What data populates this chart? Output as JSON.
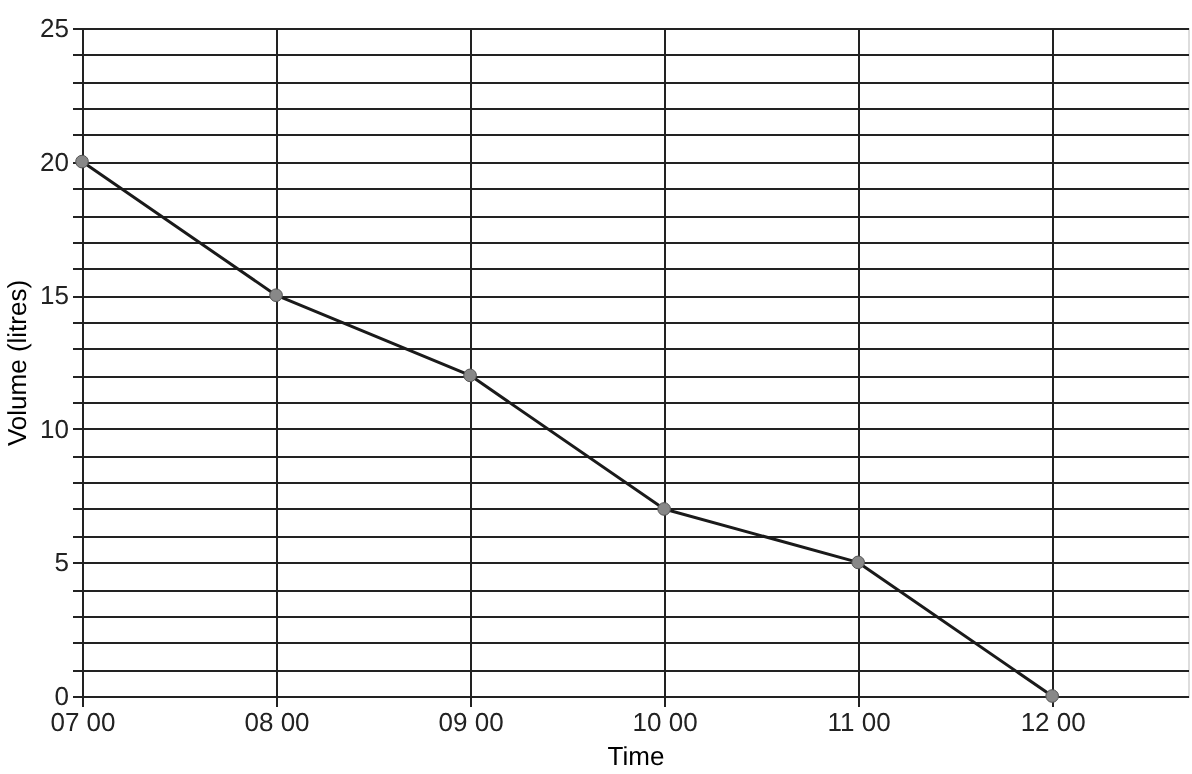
{
  "chart_data": {
    "type": "line",
    "xlabel": "Time",
    "ylabel": "Volume (litres)",
    "categories": [
      "07 00",
      "08 00",
      "09 00",
      "10 00",
      "11 00",
      "12 00"
    ],
    "series": [
      {
        "color": "#1a1a1a",
        "values": [
          20,
          15,
          12,
          7,
          5,
          0
        ]
      }
    ],
    "ylim": [
      0,
      25
    ],
    "yticks": [
      0,
      {
        "value": 1,
        "label": null
      },
      {
        "value": 2,
        "label": null
      },
      {
        "value": 3,
        "label": null
      },
      {
        "value": 4,
        "label": null
      },
      5,
      {
        "value": 6,
        "label": null
      },
      {
        "value": 7,
        "label": null
      },
      {
        "value": 8,
        "label": null
      },
      {
        "value": 9,
        "label": null
      },
      10,
      {
        "value": 11,
        "label": null
      },
      {
        "value": 12,
        "label": null
      },
      {
        "value": 13,
        "label": null
      },
      {
        "value": 14,
        "label": null
      },
      15,
      {
        "value": 16,
        "label": null
      },
      {
        "value": 17,
        "label": null
      },
      {
        "value": 18,
        "label": null
      },
      {
        "value": 19,
        "label": null
      },
      20,
      {
        "value": 21,
        "label": null
      },
      {
        "value": 22,
        "label": null
      },
      {
        "value": 23,
        "label": null
      },
      {
        "value": 24,
        "label": null
      },
      25
    ],
    "grid": true,
    "marker": "circle",
    "line_style": "solid"
  }
}
